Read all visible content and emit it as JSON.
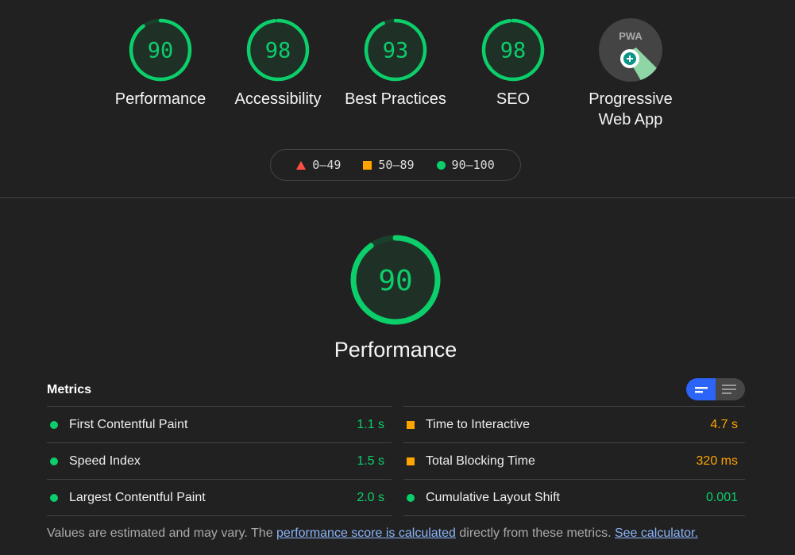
{
  "categories": [
    {
      "label": "Performance",
      "score": 90
    },
    {
      "label": "Accessibility",
      "score": 98
    },
    {
      "label": "Best Practices",
      "score": 93
    },
    {
      "label": "SEO",
      "score": 98
    },
    {
      "label": "Progressive Web App",
      "badge": "PWA"
    }
  ],
  "legend": [
    {
      "label": "0–49",
      "color": "#ff4e42",
      "shape": "triangle"
    },
    {
      "label": "50–89",
      "color": "#ffa400",
      "shape": "square"
    },
    {
      "label": "90–100",
      "color": "#0cce6b",
      "shape": "circle"
    }
  ],
  "main": {
    "score": 90,
    "title": "Performance"
  },
  "metrics": {
    "heading": "Metrics",
    "left": [
      {
        "name": "First Contentful Paint",
        "value": "1.1 s",
        "status": "pass"
      },
      {
        "name": "Speed Index",
        "value": "1.5 s",
        "status": "pass"
      },
      {
        "name": "Largest Contentful Paint",
        "value": "2.0 s",
        "status": "pass"
      }
    ],
    "right": [
      {
        "name": "Time to Interactive",
        "value": "4.7 s",
        "status": "average"
      },
      {
        "name": "Total Blocking Time",
        "value": "320 ms",
        "status": "average"
      },
      {
        "name": "Cumulative Layout Shift",
        "value": "0.001",
        "status": "pass"
      }
    ]
  },
  "footer": {
    "text1": "Values are estimated and may vary. The ",
    "link1": "performance score is calculated",
    "text2": " directly from these metrics. ",
    "link2": "See calculator."
  },
  "colors": {
    "pass": "#0cce6b",
    "average": "#ffa400",
    "fail": "#ff4e42",
    "accent": "#2b64f6"
  }
}
